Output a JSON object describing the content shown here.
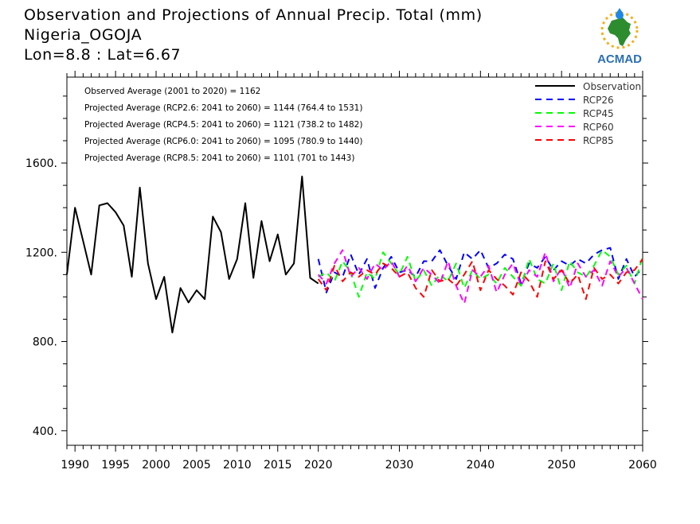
{
  "header": {
    "title": "Observation and Projections of Annual Precip. Total (mm)",
    "location": "Nigeria_OGOJA",
    "coords": "Lon=8.8 : Lat=6.67"
  },
  "logo": {
    "text": "ACMAD",
    "icon": "africa-map-icon"
  },
  "colors": {
    "observation": "#000000",
    "rcp26": "#0000ff",
    "rcp45": "#00ff00",
    "rcp60": "#ff00ff",
    "rcp85": "#ff0000"
  },
  "chart_data": {
    "type": "line",
    "xlim": [
      1989,
      2060
    ],
    "ylim": [
      335,
      1985
    ],
    "yticks": [
      400,
      800,
      1200,
      1600
    ],
    "ytick_labels": [
      "400.",
      "800.",
      "1200.",
      "1600."
    ],
    "xticks_labels": [
      "1990",
      "1995",
      "2000",
      "2005",
      "2010",
      "2015",
      "2020",
      "2030",
      "2040",
      "2050",
      "2060"
    ],
    "xtick_values": [
      1990,
      1995,
      2000,
      2005,
      2010,
      2015,
      2020,
      2030,
      2040,
      2050,
      2060
    ],
    "annotations": [
      "Observed Average (2001 to 2020) = 1162",
      "Projected Average (RCP2.6: 2041 to 2060) = 1144 (764.4 to 1531)",
      "Projected Average (RCP4.5: 2041 to 2060) = 1121 (738.2 to 1482)",
      "Projected Average (RCP6.0: 2041 to 2060) = 1095 (780.9 to 1440)",
      "Projected Average (RCP8.5: 2041 to 2060) = 1101 (701 to 1443)"
    ],
    "legend": [
      "Observation",
      "RCP26",
      "RCP45",
      "RCP60",
      "RCP85"
    ],
    "legend_position": "top-right",
    "series": [
      {
        "name": "Observation",
        "x": [
          1989,
          1990,
          1991,
          1992,
          1993,
          1994,
          1995,
          1996,
          1997,
          1998,
          1999,
          2000,
          2001,
          2002,
          2003,
          2004,
          2005,
          2006,
          2007,
          2008,
          2009,
          2010,
          2011,
          2012,
          2013,
          2014,
          2015,
          2016,
          2017,
          2018,
          2019,
          2020
        ],
        "values": [
          1100,
          1400,
          1250,
          1100,
          1410,
          1420,
          1380,
          1320,
          1090,
          1490,
          1150,
          990,
          1090,
          840,
          1040,
          975,
          1030,
          990,
          1360,
          1290,
          1080,
          1170,
          1420,
          1085,
          1340,
          1160,
          1280,
          1100,
          1150,
          1540,
          1085,
          1060
        ]
      },
      {
        "name": "RCP26",
        "x": [
          2020,
          2021,
          2022,
          2023,
          2024,
          2025,
          2026,
          2027,
          2028,
          2029,
          2030,
          2031,
          2032,
          2033,
          2034,
          2035,
          2036,
          2037,
          2038,
          2039,
          2040,
          2041,
          2042,
          2043,
          2044,
          2045,
          2046,
          2047,
          2048,
          2049,
          2050,
          2051,
          2052,
          2053,
          2054,
          2055,
          2056,
          2057,
          2058,
          2059,
          2060
        ],
        "values": [
          1170,
          1020,
          1110,
          1090,
          1190,
          1100,
          1170,
          1040,
          1130,
          1180,
          1110,
          1120,
          1090,
          1160,
          1160,
          1210,
          1140,
          1080,
          1200,
          1170,
          1210,
          1130,
          1150,
          1190,
          1170,
          1060,
          1150,
          1130,
          1180,
          1120,
          1160,
          1140,
          1170,
          1150,
          1190,
          1210,
          1220,
          1080,
          1170,
          1090,
          1130
        ]
      },
      {
        "name": "RCP45",
        "x": [
          2020,
          2021,
          2022,
          2023,
          2024,
          2025,
          2026,
          2027,
          2028,
          2029,
          2030,
          2031,
          2032,
          2033,
          2034,
          2035,
          2036,
          2037,
          2038,
          2039,
          2040,
          2041,
          2042,
          2043,
          2044,
          2045,
          2046,
          2047,
          2048,
          2049,
          2050,
          2051,
          2052,
          2053,
          2054,
          2055,
          2056,
          2057,
          2058,
          2059,
          2060
        ],
        "values": [
          1090,
          1110,
          1070,
          1160,
          1110,
          1000,
          1110,
          1080,
          1200,
          1150,
          1100,
          1180,
          1070,
          1120,
          1050,
          1100,
          1070,
          1150,
          1040,
          1120,
          1080,
          1100,
          1060,
          1130,
          1090,
          1050,
          1170,
          1080,
          1060,
          1150,
          1030,
          1160,
          1110,
          1090,
          1140,
          1210,
          1180,
          1100,
          1140,
          1060,
          1180
        ]
      },
      {
        "name": "RCP60",
        "x": [
          2020,
          2021,
          2022,
          2023,
          2024,
          2025,
          2026,
          2027,
          2028,
          2029,
          2030,
          2031,
          2032,
          2033,
          2034,
          2035,
          2036,
          2037,
          2038,
          2039,
          2040,
          2041,
          2042,
          2043,
          2044,
          2045,
          2046,
          2047,
          2048,
          2049,
          2050,
          2051,
          2052,
          2053,
          2054,
          2055,
          2056,
          2057,
          2058,
          2059,
          2060
        ],
        "values": [
          1100,
          1060,
          1150,
          1210,
          1090,
          1130,
          1080,
          1150,
          1120,
          1160,
          1090,
          1140,
          1070,
          1130,
          1100,
          1060,
          1160,
          1050,
          970,
          1120,
          1090,
          1140,
          1020,
          1100,
          1150,
          1050,
          1120,
          1090,
          1200,
          1070,
          1130,
          1040,
          1150,
          1090,
          1120,
          1050,
          1160,
          1090,
          1130,
          1060,
          990
        ]
      },
      {
        "name": "RCP85",
        "x": [
          2020,
          2021,
          2022,
          2023,
          2024,
          2025,
          2026,
          2027,
          2028,
          2029,
          2030,
          2031,
          2032,
          2033,
          2034,
          2035,
          2036,
          2037,
          2038,
          2039,
          2040,
          2041,
          2042,
          2043,
          2044,
          2045,
          2046,
          2047,
          2048,
          2049,
          2050,
          2051,
          2052,
          2053,
          2054,
          2055,
          2056,
          2057,
          2058,
          2059,
          2060
        ],
        "values": [
          1080,
          1030,
          1140,
          1070,
          1110,
          1090,
          1120,
          1100,
          1150,
          1130,
          1090,
          1110,
          1040,
          1000,
          1120,
          1070,
          1080,
          1050,
          1100,
          1160,
          1030,
          1120,
          1080,
          1050,
          1010,
          1110,
          1070,
          1000,
          1160,
          1080,
          1120,
          1060,
          1100,
          990,
          1130,
          1080,
          1100,
          1060,
          1110,
          1120,
          1170
        ]
      }
    ]
  }
}
